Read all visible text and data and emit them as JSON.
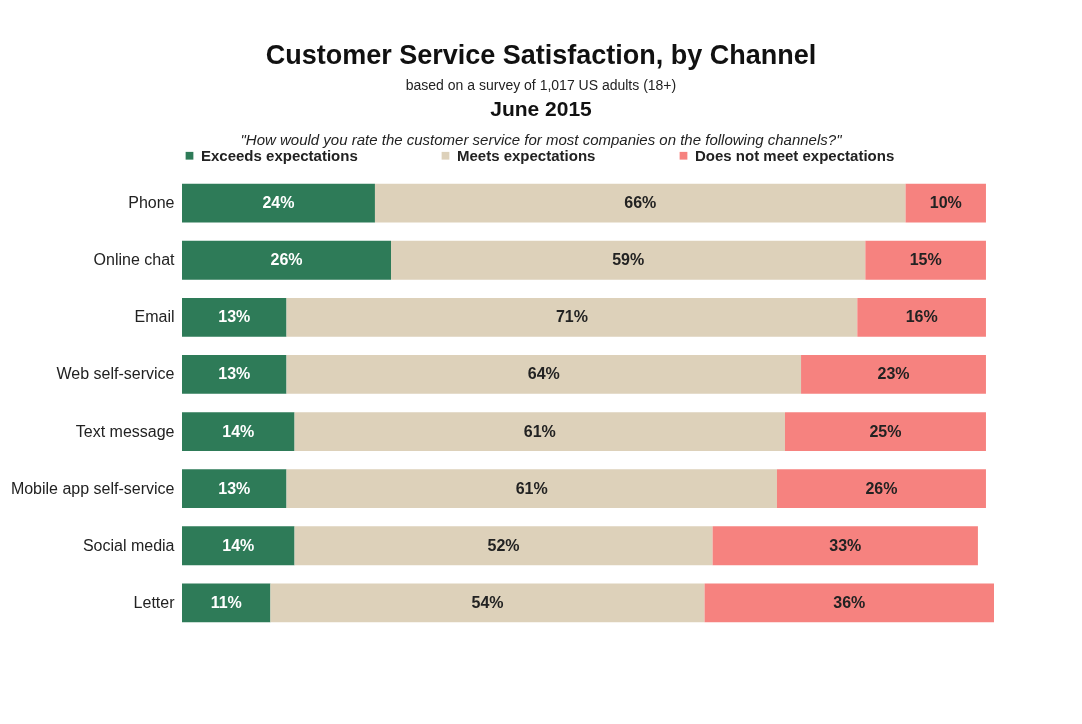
{
  "chart_data": {
    "type": "bar",
    "orientation": "horizontal",
    "stacked": true,
    "title": "Customer Service Satisfaction, by Channel",
    "subtitle": "based on a survey of 1,017 US adults (18+)",
    "annotations": [
      "June 2015",
      "\"How would you rate the customer service for most companies on the following channels?\""
    ],
    "categories": [
      "Phone",
      "Online chat",
      "Email",
      "Web self-service",
      "Text message",
      "Mobile app self-service",
      "Social media",
      "Letter"
    ],
    "legend": "top",
    "series": [
      {
        "name": "Exceeds expectations",
        "color": "#2e7b58",
        "values": [
          24,
          26,
          13,
          13,
          14,
          13,
          14,
          11
        ],
        "value_labels": [
          "24%",
          "26%",
          "13%",
          "13%",
          "14%",
          "13%",
          "14%",
          "11%"
        ]
      },
      {
        "name": "Meets expectations",
        "color": "#ddd1ba",
        "values": [
          66,
          59,
          71,
          64,
          61,
          61,
          52,
          54
        ],
        "value_labels": [
          "66%",
          "59%",
          "71%",
          "64%",
          "61%",
          "61%",
          "52%",
          "54%"
        ]
      },
      {
        "name": "Does not meet expectations",
        "color": "#f6827f",
        "values": [
          10,
          15,
          16,
          23,
          25,
          26,
          33,
          36
        ],
        "value_labels": [
          "10%",
          "15%",
          "16%",
          "23%",
          "25%",
          "26%",
          "33%",
          "36%"
        ]
      }
    ]
  }
}
